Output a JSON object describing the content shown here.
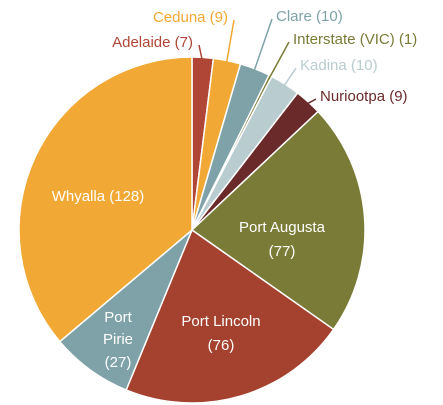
{
  "chart_data": {
    "type": "pie",
    "categories": [
      "Adelaide",
      "Ceduna",
      "Clare",
      "Interstate (VIC)",
      "Kadina",
      "Nuriootpa",
      "Port Augusta",
      "Port Lincoln",
      "Port Pirie",
      "Whyalla"
    ],
    "values": [
      7,
      9,
      10,
      1,
      10,
      9,
      77,
      76,
      27,
      128
    ],
    "value_labels": [
      "(7)",
      "(9)",
      "(10)",
      "(1)",
      "(10)",
      "(9)",
      "(77)",
      "(76)",
      "(27)",
      "(128)"
    ],
    "colors": [
      "#b04636",
      "#f2a834",
      "#7ea2a8",
      "#7a7b36",
      "#b9ccd0",
      "#6b2a2a",
      "#7a7b36",
      "#a5422f",
      "#7ea2a8",
      "#f2a834"
    ]
  }
}
